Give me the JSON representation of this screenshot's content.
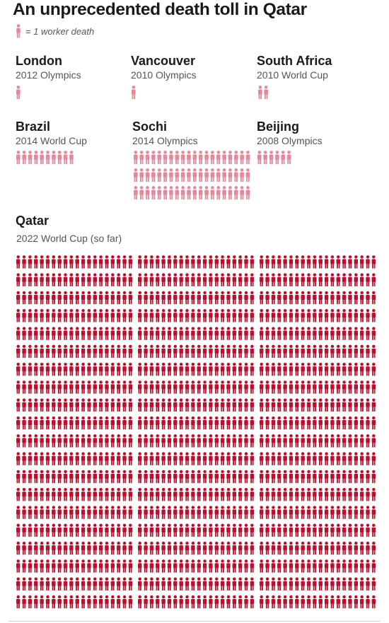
{
  "title": "An unprecedented death toll in Qatar",
  "legend": {
    "label": "= 1 worker death",
    "icon": "person-icon"
  },
  "colors": {
    "other_events": "#e28a9b",
    "qatar": "#b8102e"
  },
  "chart_data": {
    "type": "pictogram",
    "unit": "1 worker death",
    "events": [
      {
        "name": "London",
        "subtitle": "2012 Olympics",
        "deaths": 1
      },
      {
        "name": "Vancouver",
        "subtitle": "2010 Olympics",
        "deaths": 1
      },
      {
        "name": "South Africa",
        "subtitle": "2010 World Cup",
        "deaths": 2
      },
      {
        "name": "Brazil",
        "subtitle": "2014 World Cup",
        "deaths": 10
      },
      {
        "name": "Sochi",
        "subtitle": "2014 Olympics",
        "deaths": 60
      },
      {
        "name": "Beijing",
        "subtitle": "2008 Olympics",
        "deaths": 6
      },
      {
        "name": "Qatar",
        "subtitle": "2022 World Cup (so far)",
        "deaths": 1200
      }
    ]
  }
}
